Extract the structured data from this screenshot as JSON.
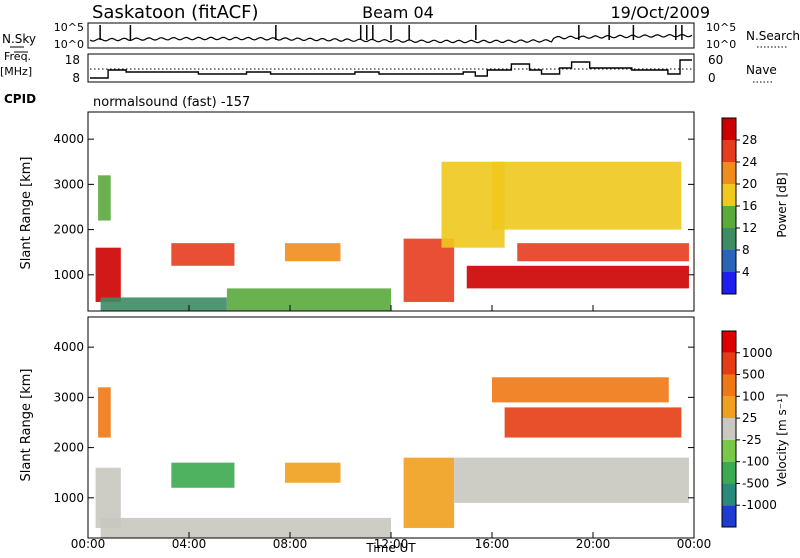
{
  "header": {
    "station": "Saskatoon (fitACF)",
    "beam": "Beam 04",
    "date": "19/Oct/2009"
  },
  "noise_panel": {
    "left_label": "N.Sky",
    "right_label": "N.Search",
    "left_ticks": [
      "10^5",
      "10^0"
    ],
    "right_ticks": [
      "10^5",
      "10^0"
    ]
  },
  "freq_panel": {
    "left_label_1": "Freq.",
    "left_label_2": "[MHz]",
    "right_label": "Nave",
    "left_ticks": [
      "18",
      "8"
    ],
    "right_ticks": [
      "60",
      "0"
    ]
  },
  "cpid": {
    "label": "CPID",
    "value": "normalsound (fast) -157"
  },
  "chart_data": [
    {
      "type": "heatmap",
      "title": "",
      "xlabel": "",
      "ylabel": "Slant Range [km]",
      "y_ticks": [
        "1000",
        "2000",
        "3000",
        "4000"
      ],
      "colorbar": {
        "label": "Power [dB]",
        "ticks": [
          "4",
          "8",
          "12",
          "16",
          "20",
          "24",
          "28"
        ],
        "colors": [
          "#1e1ef0",
          "#2a64b8",
          "#3c8c64",
          "#5aaa3c",
          "#f0c81e",
          "#f08c1e",
          "#e63c1e",
          "#cc0000"
        ]
      },
      "xlim": [
        0,
        24
      ],
      "ylim": [
        200,
        4600
      ],
      "patches": [
        {
          "t0": 0.3,
          "t1": 1.3,
          "r0": 400,
          "r1": 1600,
          "level": 7
        },
        {
          "t0": 0.4,
          "t1": 0.9,
          "r0": 2200,
          "r1": 3200,
          "level": 3
        },
        {
          "t0": 0.5,
          "t1": 5.5,
          "r0": 200,
          "r1": 500,
          "level": 2
        },
        {
          "t0": 3.3,
          "t1": 5.8,
          "r0": 1200,
          "r1": 1700,
          "level": 6
        },
        {
          "t0": 7.8,
          "t1": 10.0,
          "r0": 1300,
          "r1": 1700,
          "level": 5
        },
        {
          "t0": 5.5,
          "t1": 12.0,
          "r0": 200,
          "r1": 700,
          "level": 3
        },
        {
          "t0": 12.5,
          "t1": 14.5,
          "r0": 400,
          "r1": 1800,
          "level": 6
        },
        {
          "t0": 14.0,
          "t1": 16.5,
          "r0": 1600,
          "r1": 3500,
          "level": 4
        },
        {
          "t0": 15.0,
          "t1": 23.8,
          "r0": 700,
          "r1": 1200,
          "level": 7
        },
        {
          "t0": 17.0,
          "t1": 23.8,
          "r0": 1300,
          "r1": 1700,
          "level": 6
        },
        {
          "t0": 16.0,
          "t1": 23.5,
          "r0": 2000,
          "r1": 3500,
          "level": 4
        }
      ]
    },
    {
      "type": "heatmap",
      "title": "",
      "xlabel": "Time UT",
      "ylabel": "Slant Range [km]",
      "y_ticks": [
        "1000",
        "2000",
        "3000",
        "4000"
      ],
      "x_ticks": [
        "00:00",
        "04:00",
        "08:00",
        "12:00",
        "16:00",
        "20:00",
        "00:00"
      ],
      "colorbar": {
        "label": "Velocity [m s⁻¹]",
        "ticks": [
          "1000",
          "500",
          "100",
          "25",
          "-25",
          "-100",
          "-500",
          "-1000"
        ],
        "colors": [
          "#1e3cd2",
          "#2a8a7a",
          "#3caa50",
          "#78c84a",
          "#c8c8c0",
          "#f0a01e",
          "#f07814",
          "#e63c14",
          "#dc0000"
        ]
      },
      "xlim": [
        0,
        24
      ],
      "ylim": [
        200,
        4600
      ],
      "patches": [
        {
          "t0": 0.3,
          "t1": 1.3,
          "r0": 400,
          "r1": 1600,
          "level": 4
        },
        {
          "t0": 0.4,
          "t1": 0.9,
          "r0": 2200,
          "r1": 3200,
          "level": 6
        },
        {
          "t0": 0.5,
          "t1": 12.0,
          "r0": 200,
          "r1": 600,
          "level": 4
        },
        {
          "t0": 3.3,
          "t1": 5.8,
          "r0": 1200,
          "r1": 1700,
          "level": 2
        },
        {
          "t0": 7.8,
          "t1": 10.0,
          "r0": 1300,
          "r1": 1700,
          "level": 5
        },
        {
          "t0": 12.5,
          "t1": 14.5,
          "r0": 400,
          "r1": 1800,
          "level": 5
        },
        {
          "t0": 14.5,
          "t1": 23.8,
          "r0": 900,
          "r1": 1800,
          "level": 4
        },
        {
          "t0": 16.5,
          "t1": 23.5,
          "r0": 2200,
          "r1": 2800,
          "level": 7
        },
        {
          "t0": 16.0,
          "t1": 23.0,
          "r0": 2900,
          "r1": 3400,
          "level": 6
        }
      ]
    }
  ]
}
